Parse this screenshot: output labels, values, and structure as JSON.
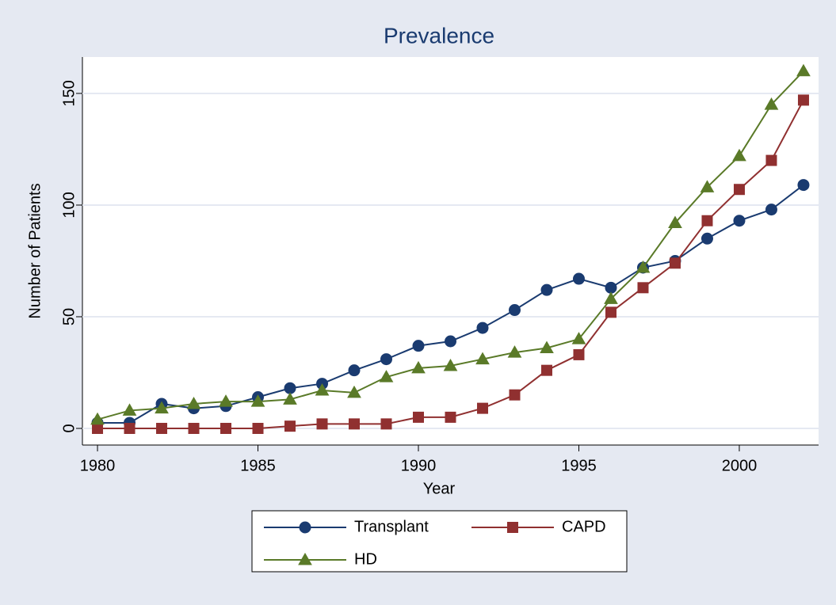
{
  "chart_data": {
    "type": "line",
    "title": "Prevalence",
    "x_label": "Year",
    "y_label": "Number of Patients",
    "x": [
      1980,
      1981,
      1982,
      1983,
      1984,
      1985,
      1986,
      1987,
      1988,
      1989,
      1990,
      1991,
      1992,
      1993,
      1994,
      1995,
      1996,
      1997,
      1998,
      1999,
      2000,
      2001,
      2002
    ],
    "series": [
      {
        "name": "Transplant",
        "color": "#1a3b70",
        "marker": "circle",
        "values": [
          2.5,
          2.5,
          11,
          9,
          10,
          14,
          18,
          20,
          26,
          31,
          37,
          39,
          45,
          53,
          62,
          67,
          63,
          72,
          75,
          85,
          93,
          98,
          109
        ]
      },
      {
        "name": "CAPD",
        "color": "#903030",
        "marker": "square",
        "values": [
          0,
          0,
          0,
          0,
          0,
          0,
          1,
          2,
          2,
          2,
          5,
          5,
          9,
          15,
          26,
          33,
          52,
          63,
          74,
          93,
          107,
          120,
          147
        ]
      },
      {
        "name": "HD",
        "color": "#5a7a28",
        "marker": "triangle",
        "values": [
          4,
          8,
          9,
          11,
          12,
          12,
          13,
          17,
          16,
          23,
          27,
          28,
          31,
          34,
          36,
          40,
          58,
          72,
          92,
          108,
          122,
          145,
          160
        ]
      }
    ],
    "xlim": [
      1979.53,
      2002.47
    ],
    "xticks": [
      1980,
      1985,
      1990,
      1995,
      2000
    ],
    "ylim": [
      -7.45,
      166.3
    ],
    "yticks": [
      0,
      50,
      100,
      150
    ],
    "grid": true,
    "legend": "bottom"
  }
}
